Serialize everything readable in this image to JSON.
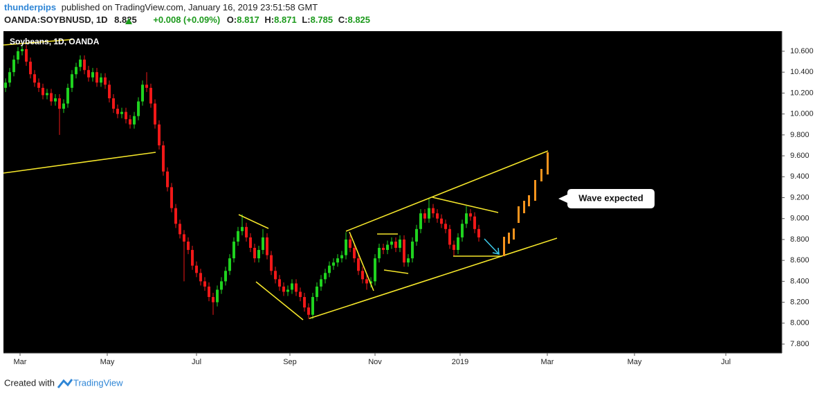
{
  "header": {
    "author": "thunderpips",
    "published": "published on TradingView.com, January 16, 2019 23:51:58 GMT"
  },
  "quote": {
    "symbol": "OANDA:SOYBNUSD, 1D",
    "last": "8.825",
    "change": "+0.008 (+0.09%)",
    "fields": [
      {
        "label": "O:",
        "value": "8.817"
      },
      {
        "label": "H:",
        "value": "8.871"
      },
      {
        "label": "L:",
        "value": "8.785"
      },
      {
        "label": "C:",
        "value": "8.825"
      }
    ]
  },
  "footer": {
    "created": "Created with",
    "brand": "TradingView"
  },
  "chart_data": {
    "type": "candlestick",
    "legend": "Soybeans, 1D, OANDA",
    "annotation": "Wave expected",
    "xlim": [
      0,
      375
    ],
    "xticks": [
      {
        "value": 8,
        "label": "Mar"
      },
      {
        "value": 50,
        "label": "May"
      },
      {
        "value": 93,
        "label": "Jul"
      },
      {
        "value": 138,
        "label": "Sep"
      },
      {
        "value": 179,
        "label": "Nov"
      },
      {
        "value": 220,
        "label": "2019"
      },
      {
        "value": 262,
        "label": "Mar"
      },
      {
        "value": 304,
        "label": "May"
      },
      {
        "value": 348,
        "label": "Jul"
      }
    ],
    "ylim": [
      7.714,
      10.792
    ],
    "yticks": [
      {
        "value": 7.8,
        "label": "7.800"
      },
      {
        "value": 8.0,
        "label": "8.000"
      },
      {
        "value": 8.2,
        "label": "8.200"
      },
      {
        "value": 8.4,
        "label": "8.400"
      },
      {
        "value": 8.6,
        "label": "8.600"
      },
      {
        "value": 8.8,
        "label": "8.800"
      },
      {
        "value": 9.0,
        "label": "9.000"
      },
      {
        "value": 9.2,
        "label": "9.200"
      },
      {
        "value": 9.4,
        "label": "9.400"
      },
      {
        "value": 9.6,
        "label": "9.600"
      },
      {
        "value": 9.8,
        "label": "9.800"
      },
      {
        "value": 10.0,
        "label": "10.000"
      },
      {
        "value": 10.2,
        "label": "10.200"
      },
      {
        "value": 10.4,
        "label": "10.400"
      },
      {
        "value": 10.6,
        "label": "10.600"
      }
    ],
    "x": [
      1,
      3,
      5,
      7,
      9,
      11,
      13,
      15,
      17,
      19,
      21,
      23,
      25,
      27,
      29,
      31,
      33,
      35,
      37,
      39,
      41,
      43,
      45,
      47,
      49,
      51,
      53,
      55,
      57,
      59,
      61,
      63,
      65,
      67,
      69,
      71,
      73,
      75,
      77,
      79,
      81,
      83,
      85,
      87,
      89,
      91,
      93,
      95,
      97,
      99,
      101,
      103,
      105,
      107,
      109,
      111,
      113,
      115,
      117,
      119,
      121,
      123,
      125,
      127,
      129,
      131,
      133,
      135,
      137,
      139,
      141,
      143,
      145,
      147,
      149,
      151,
      153,
      155,
      157,
      159,
      161,
      163,
      165,
      167,
      169,
      171,
      173,
      175,
      177,
      179,
      181,
      183,
      185,
      187,
      189,
      191,
      193,
      195,
      197,
      199,
      201,
      203,
      205,
      207,
      209,
      211,
      213,
      215,
      217,
      219,
      221,
      223,
      225,
      227,
      229
    ],
    "series": [
      {
        "up_color": "#1fd31f",
        "down_color": "#f01818",
        "values": [
          [
            10.25,
            10.34,
            10.21,
            10.3
          ],
          [
            10.3,
            10.44,
            10.26,
            10.4
          ],
          [
            10.4,
            10.56,
            10.36,
            10.52
          ],
          [
            10.52,
            10.64,
            10.48,
            10.6
          ],
          [
            10.6,
            10.66,
            10.56,
            10.62
          ],
          [
            10.62,
            10.66,
            10.46,
            10.5
          ],
          [
            10.5,
            10.54,
            10.34,
            10.38
          ],
          [
            10.38,
            10.42,
            10.26,
            10.3
          ],
          [
            10.3,
            10.34,
            10.21,
            10.25
          ],
          [
            10.25,
            10.29,
            10.14,
            10.18
          ],
          [
            10.18,
            10.24,
            10.14,
            10.2
          ],
          [
            10.2,
            10.24,
            10.08,
            10.12
          ],
          [
            10.12,
            10.19,
            10.08,
            10.15
          ],
          [
            10.15,
            10.19,
            9.8,
            10.05
          ],
          [
            10.05,
            10.14,
            10.01,
            10.1
          ],
          [
            10.1,
            10.29,
            10.06,
            10.25
          ],
          [
            10.25,
            10.42,
            10.21,
            10.38
          ],
          [
            10.38,
            10.49,
            10.34,
            10.45
          ],
          [
            10.45,
            10.56,
            10.41,
            10.52
          ],
          [
            10.52,
            10.56,
            10.38,
            10.42
          ],
          [
            10.42,
            10.46,
            10.31,
            10.35
          ],
          [
            10.35,
            10.44,
            10.31,
            10.4
          ],
          [
            10.4,
            10.44,
            10.26,
            10.3
          ],
          [
            10.3,
            10.39,
            10.26,
            10.35
          ],
          [
            10.35,
            10.39,
            10.24,
            10.28
          ],
          [
            10.28,
            10.32,
            10.11,
            10.15
          ],
          [
            10.15,
            10.19,
            10.01,
            10.05
          ],
          [
            10.05,
            10.09,
            9.96,
            10.0
          ],
          [
            10.0,
            10.06,
            9.96,
            10.02
          ],
          [
            10.02,
            10.06,
            9.91,
            9.95
          ],
          [
            9.95,
            9.99,
            9.86,
            9.9
          ],
          [
            9.9,
            10.02,
            9.86,
            9.98
          ],
          [
            9.98,
            10.16,
            9.94,
            10.12
          ],
          [
            10.12,
            10.32,
            10.08,
            10.28
          ],
          [
            10.28,
            10.4,
            10.21,
            10.25
          ],
          [
            10.25,
            10.29,
            10.06,
            10.1
          ],
          [
            10.1,
            10.14,
            9.86,
            9.9
          ],
          [
            9.9,
            9.94,
            9.66,
            9.7
          ],
          [
            9.7,
            9.74,
            9.41,
            9.45
          ],
          [
            9.45,
            9.49,
            9.26,
            9.3
          ],
          [
            9.3,
            9.34,
            9.06,
            9.1
          ],
          [
            9.1,
            9.14,
            8.91,
            8.95
          ],
          [
            8.95,
            8.99,
            8.81,
            8.85
          ],
          [
            8.85,
            8.89,
            8.4,
            8.78
          ],
          [
            8.78,
            8.82,
            8.66,
            8.7
          ],
          [
            8.7,
            8.74,
            8.51,
            8.55
          ],
          [
            8.55,
            8.59,
            8.44,
            8.48
          ],
          [
            8.48,
            8.52,
            8.36,
            8.4
          ],
          [
            8.4,
            8.44,
            8.31,
            8.35
          ],
          [
            8.35,
            8.39,
            8.21,
            8.25
          ],
          [
            8.25,
            8.29,
            8.08,
            8.2
          ],
          [
            8.2,
            8.36,
            8.16,
            8.32
          ],
          [
            8.32,
            8.44,
            8.28,
            8.4
          ],
          [
            8.4,
            8.54,
            8.36,
            8.5
          ],
          [
            8.5,
            8.66,
            8.46,
            8.62
          ],
          [
            8.62,
            8.82,
            8.58,
            8.78
          ],
          [
            8.78,
            8.92,
            8.74,
            8.88
          ],
          [
            8.88,
            9.04,
            8.84,
            8.92
          ],
          [
            8.92,
            8.96,
            8.78,
            8.82
          ],
          [
            8.82,
            8.86,
            8.68,
            8.72
          ],
          [
            8.72,
            8.76,
            8.58,
            8.62
          ],
          [
            8.62,
            8.74,
            8.58,
            8.7
          ],
          [
            8.7,
            8.9,
            8.66,
            8.82
          ],
          [
            8.82,
            8.86,
            8.61,
            8.65
          ],
          [
            8.65,
            8.69,
            8.46,
            8.5
          ],
          [
            8.5,
            8.54,
            8.38,
            8.42
          ],
          [
            8.42,
            8.46,
            8.31,
            8.35
          ],
          [
            8.35,
            8.39,
            8.26,
            8.3
          ],
          [
            8.3,
            8.36,
            8.26,
            8.32
          ],
          [
            8.32,
            8.42,
            8.28,
            8.38
          ],
          [
            8.38,
            8.42,
            8.26,
            8.3
          ],
          [
            8.3,
            8.34,
            8.21,
            8.25
          ],
          [
            8.25,
            8.29,
            8.11,
            8.15
          ],
          [
            8.15,
            8.19,
            8.04,
            8.08
          ],
          [
            8.08,
            8.29,
            8.04,
            8.25
          ],
          [
            8.25,
            8.39,
            8.21,
            8.35
          ],
          [
            8.35,
            8.46,
            8.31,
            8.42
          ],
          [
            8.42,
            8.52,
            8.38,
            8.48
          ],
          [
            8.48,
            8.59,
            8.44,
            8.55
          ],
          [
            8.55,
            8.62,
            8.51,
            8.58
          ],
          [
            8.58,
            8.66,
            8.54,
            8.62
          ],
          [
            8.62,
            8.69,
            8.58,
            8.65
          ],
          [
            8.65,
            8.87,
            8.61,
            8.8
          ],
          [
            8.8,
            8.84,
            8.68,
            8.72
          ],
          [
            8.72,
            8.76,
            8.58,
            8.62
          ],
          [
            8.62,
            8.66,
            8.46,
            8.5
          ],
          [
            8.5,
            8.54,
            8.38,
            8.42
          ],
          [
            8.42,
            8.46,
            8.32,
            8.38
          ],
          [
            8.38,
            8.44,
            8.34,
            8.4
          ],
          [
            8.4,
            8.66,
            8.36,
            8.62
          ],
          [
            8.62,
            8.76,
            8.58,
            8.72
          ],
          [
            8.72,
            8.76,
            8.66,
            8.7
          ],
          [
            8.7,
            8.79,
            8.66,
            8.75
          ],
          [
            8.75,
            8.82,
            8.71,
            8.78
          ],
          [
            8.78,
            8.82,
            8.68,
            8.72
          ],
          [
            8.72,
            8.84,
            8.68,
            8.8
          ],
          [
            8.8,
            8.84,
            8.54,
            8.58
          ],
          [
            8.58,
            8.66,
            8.54,
            8.62
          ],
          [
            8.62,
            8.82,
            8.58,
            8.78
          ],
          [
            8.78,
            8.94,
            8.74,
            8.9
          ],
          [
            8.9,
            9.09,
            8.86,
            9.05
          ],
          [
            9.05,
            9.09,
            8.96,
            9.0
          ],
          [
            9.0,
            9.2,
            8.96,
            9.1
          ],
          [
            9.1,
            9.14,
            9.01,
            9.05
          ],
          [
            9.05,
            9.09,
            8.96,
            9.0
          ],
          [
            9.0,
            9.04,
            8.91,
            8.95
          ],
          [
            8.95,
            8.99,
            8.86,
            8.9
          ],
          [
            8.9,
            8.94,
            8.71,
            8.75
          ],
          [
            8.75,
            8.79,
            8.64,
            8.7
          ],
          [
            8.7,
            8.86,
            8.66,
            8.82
          ],
          [
            8.82,
            8.99,
            8.78,
            8.95
          ],
          [
            8.95,
            9.12,
            8.91,
            9.05
          ],
          [
            9.05,
            9.09,
            8.98,
            9.02
          ],
          [
            9.02,
            9.06,
            8.86,
            8.9
          ],
          [
            8.9,
            8.94,
            8.78,
            8.82
          ]
        ]
      }
    ]
  }
}
